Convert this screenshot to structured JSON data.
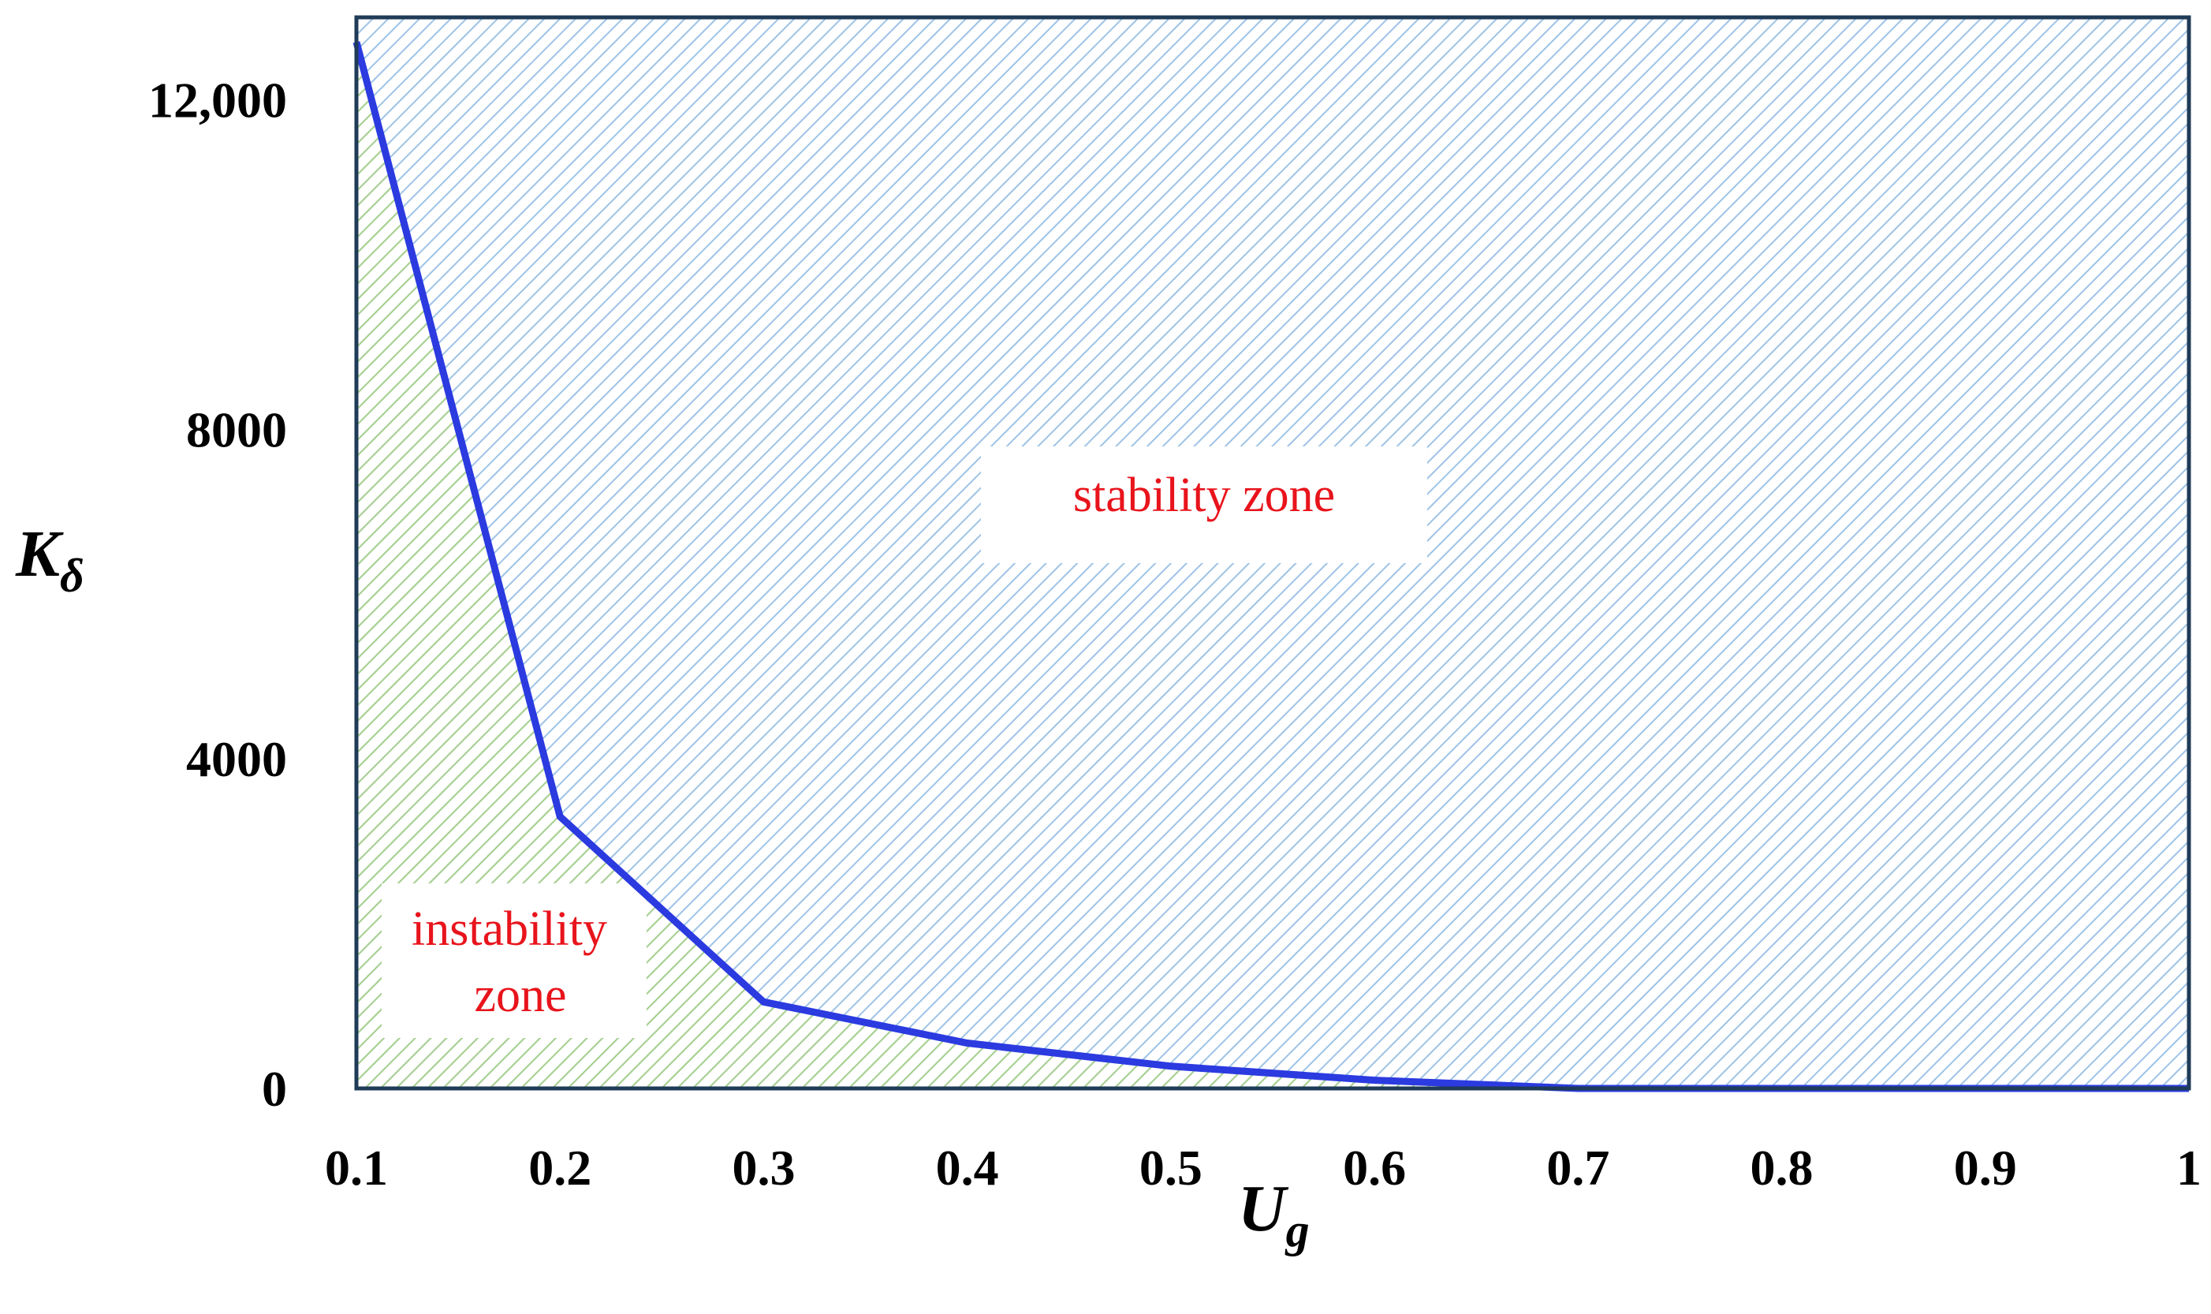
{
  "chart_data": {
    "type": "line",
    "title": "",
    "xlabel": {
      "main": "U",
      "sub": "g"
    },
    "ylabel": {
      "main": "K",
      "sub": "δ"
    },
    "xlim": [
      0.1,
      1
    ],
    "ylim": [
      0,
      13000
    ],
    "x_ticks": [
      0.1,
      0.2,
      0.3,
      0.4,
      0.5,
      0.6,
      0.7,
      0.8,
      0.9,
      1
    ],
    "x_tick_labels": [
      "0.1",
      "0.2",
      "0.3",
      "0.4",
      "0.5",
      "0.6",
      "0.7",
      "0.8",
      "0.9",
      "1"
    ],
    "y_ticks": [
      0,
      4000,
      8000,
      12000
    ],
    "y_tick_labels": [
      "0",
      "4000",
      "8000",
      "12,000"
    ],
    "grid": false,
    "legend": "none",
    "series": [
      {
        "x": [
          0.1,
          0.2,
          0.3,
          0.4,
          0.5,
          0.6,
          0.7,
          0.8,
          0.9,
          1
        ],
        "y": [
          12700,
          3300,
          1050,
          550,
          270,
          100,
          0,
          0,
          0,
          0
        ],
        "color": "#2b3be0"
      }
    ],
    "regions": [
      {
        "label": "stability zone",
        "position": "above-curve",
        "hatch_color": "#9ec3e6"
      },
      {
        "label_lines": [
          "instability",
          "zone"
        ],
        "position": "below-curve",
        "hatch_color": "#a9d18e"
      }
    ],
    "annotation_color": "#e8141c",
    "frame_color": "#1f3b57"
  }
}
